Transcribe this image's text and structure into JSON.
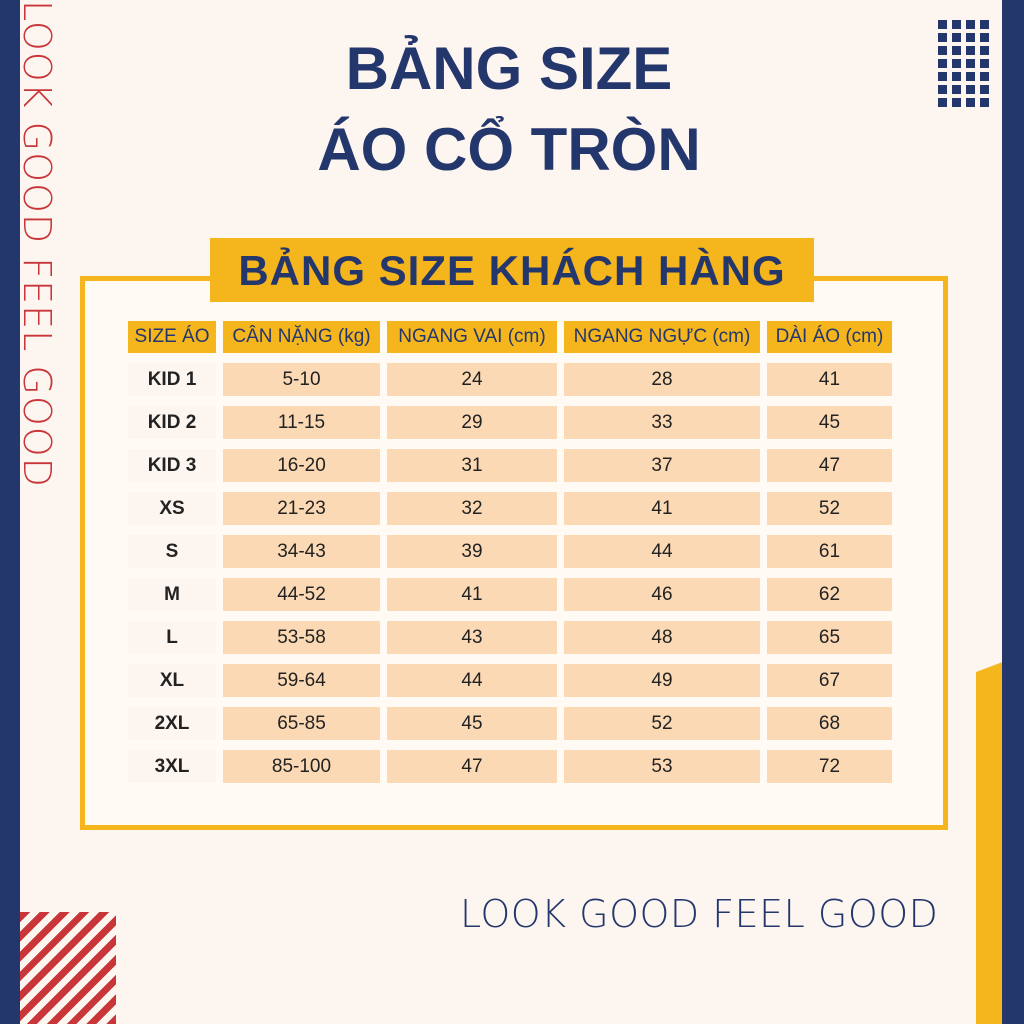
{
  "title_line1": "BẢNG SIZE",
  "title_line2": "ÁO CỔ TRÒN",
  "side_text": "LOOK GOOD FEEL GOOD",
  "table_title": "BẢNG SIZE KHÁCH HÀNG",
  "columns": [
    "SIZE ÁO",
    "CÂN NẶNG (kg)",
    "NGANG VAI (cm)",
    "NGANG NGỰC (cm)",
    "DÀI ÁO (cm)"
  ],
  "rows": [
    [
      "KID 1",
      "5-10",
      "24",
      "28",
      "41"
    ],
    [
      "KID 2",
      "11-15",
      "29",
      "33",
      "45"
    ],
    [
      "KID 3",
      "16-20",
      "31",
      "37",
      "47"
    ],
    [
      "XS",
      "21-23",
      "32",
      "41",
      "52"
    ],
    [
      "S",
      "34-43",
      "39",
      "44",
      "61"
    ],
    [
      "M",
      "44-52",
      "41",
      "46",
      "62"
    ],
    [
      "L",
      "53-58",
      "43",
      "48",
      "65"
    ],
    [
      "XL",
      "59-64",
      "44",
      "49",
      "67"
    ],
    [
      "2XL",
      "65-85",
      "45",
      "52",
      "68"
    ],
    [
      "3XL",
      "85-100",
      "47",
      "53",
      "72"
    ]
  ],
  "footer_text": "LOOK GOOD FEEL GOOD",
  "colors": {
    "navy": "#24376d",
    "yellow": "#f5b51c",
    "red": "#c8363a",
    "peach": "#fcd9b5"
  }
}
